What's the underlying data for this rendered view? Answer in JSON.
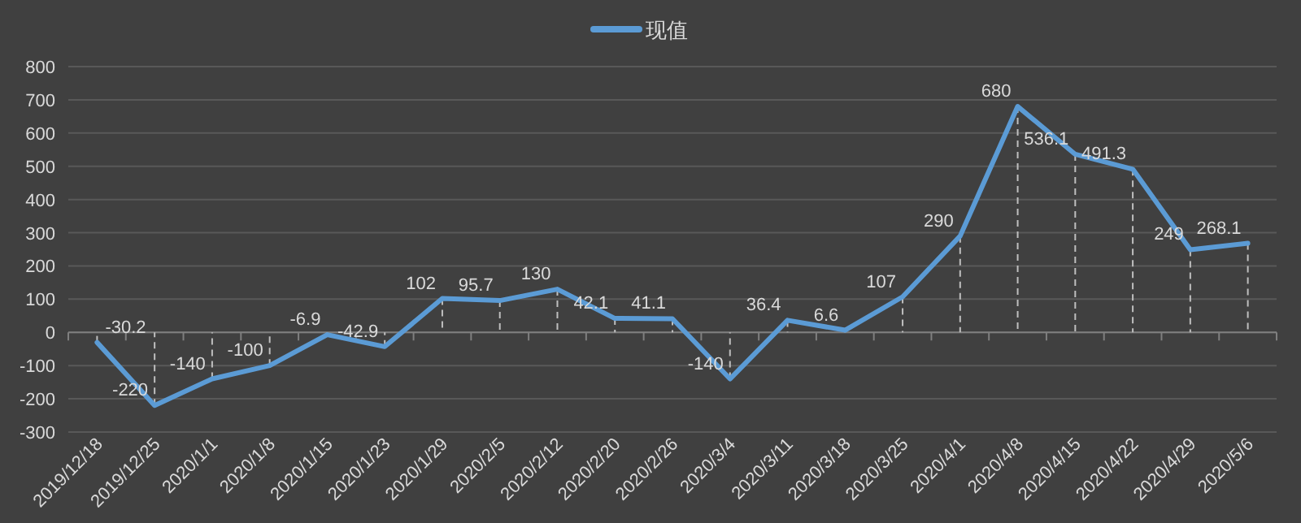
{
  "chart_data": {
    "type": "line",
    "categories": [
      "2019/12/18",
      "2019/12/25",
      "2020/1/1",
      "2020/1/8",
      "2020/1/15",
      "2020/1/23",
      "2020/1/29",
      "2020/2/5",
      "2020/2/12",
      "2020/2/20",
      "2020/2/26",
      "2020/3/4",
      "2020/3/11",
      "2020/3/18",
      "2020/3/25",
      "2020/4/1",
      "2020/4/8",
      "2020/4/15",
      "2020/4/22",
      "2020/4/29",
      "2020/5/6"
    ],
    "series": [
      {
        "name": "现值",
        "color": "#5b9bd5",
        "values": [
          -30.2,
          -220,
          -140,
          -100,
          -6.9,
          -42.9,
          102,
          95.7,
          130,
          42.1,
          41.1,
          -140,
          36.4,
          6.6,
          107,
          290,
          680,
          536.1,
          491.3,
          249,
          268.1
        ]
      }
    ],
    "ylim": [
      -300,
      800
    ],
    "yticks": [
      -300,
      -200,
      -100,
      0,
      100,
      200,
      300,
      400,
      500,
      600,
      700,
      800
    ],
    "grid": "y",
    "legend": "top",
    "data_labels": true,
    "marker": "none",
    "line_style": "solid"
  }
}
